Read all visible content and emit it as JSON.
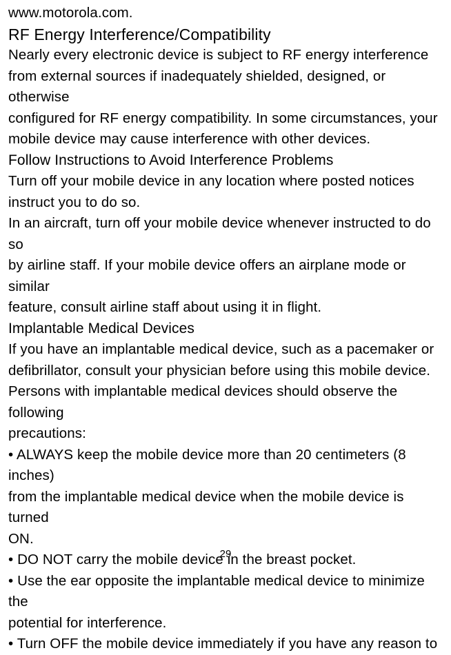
{
  "url": "www.motorola.com.",
  "h1": "RF Energy Interference/Compatibility",
  "p1a": "Nearly every electronic device is subject to RF energy interference",
  "p1b": "from external sources if inadequately shielded, designed, or otherwise",
  "p1c": "configured for RF energy compatibility. In some circumstances, your",
  "p1d": "mobile device may cause interference with other devices.",
  "h2": "Follow Instructions to Avoid Interference Problems",
  "p2a": "Turn off your mobile device in any location where posted notices",
  "p2b": "instruct you to do so.",
  "p3a": "In an aircraft, turn off your mobile device whenever instructed to do so",
  "p3b": "by airline staff. If your mobile device offers an airplane mode or similar",
  "p3c": "feature, consult airline staff about using it in flight.",
  "h3": "Implantable Medical Devices",
  "p4a": "If you have an implantable medical device, such as a pacemaker or",
  "p4b": "defibrillator, consult your physician before using this mobile device.",
  "p4c": "Persons with implantable medical devices should observe the following",
  "p4d": "precautions:",
  "b1a": "• ALWAYS keep the mobile device more than 20 centimeters (8 inches)",
  "b1b": "from the implantable medical device when the mobile device is turned",
  "b1c": "ON.",
  "b2": "• DO NOT carry the mobile device in the breast pocket.",
  "b3a": "• Use the ear opposite the implantable medical device to minimize the",
  "b3b": "potential for interference.",
  "b4": "• Turn OFF the mobile device immediately if you have any reason to",
  "pagenum": "29"
}
